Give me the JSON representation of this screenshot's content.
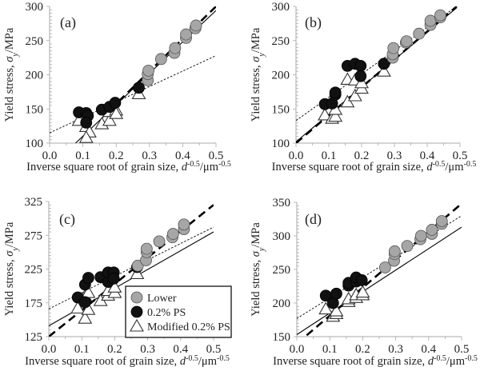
{
  "chart_data": [
    {
      "type": "scatter",
      "panel_label": "(a)",
      "xlabel": "Inverse square root of grain size, d^-0.5/μm^-0.5",
      "ylabel": "Yield stress, σy/MPa",
      "xlim": [
        0.0,
        0.5
      ],
      "ylim": [
        100,
        300
      ],
      "xticks": [
        "0.0",
        "0.1",
        "0.2",
        "0.3",
        "0.4",
        "0.5"
      ],
      "yticks": [
        "100",
        "150",
        "200",
        "250",
        "300"
      ],
      "grid": false,
      "series": [
        {
          "name": "Lower",
          "marker": "circle-gray",
          "points": [
            [
              0.295,
              192
            ],
            [
              0.295,
              201
            ],
            [
              0.297,
              206
            ],
            [
              0.335,
              223
            ],
            [
              0.375,
              232
            ],
            [
              0.377,
              239
            ],
            [
              0.41,
              254
            ],
            [
              0.41,
              259
            ],
            [
              0.438,
              268
            ],
            [
              0.44,
              272
            ]
          ]
        },
        {
          "name": "0.2% PS",
          "marker": "circle-black",
          "points": [
            [
              0.088,
              145
            ],
            [
              0.11,
              144
            ],
            [
              0.115,
              140
            ],
            [
              0.11,
              130
            ],
            [
              0.157,
              149
            ],
            [
              0.18,
              153
            ],
            [
              0.197,
              159
            ],
            [
              0.268,
              181
            ]
          ]
        },
        {
          "name": "Modified 0.2% PS",
          "marker": "triangle-open",
          "points": [
            [
              0.088,
              133
            ],
            [
              0.11,
              124
            ],
            [
              0.12,
              116
            ],
            [
              0.11,
              108
            ],
            [
              0.157,
              128
            ],
            [
              0.18,
              133
            ],
            [
              0.18,
              146
            ],
            [
              0.2,
              148
            ],
            [
              0.2,
              143
            ],
            [
              0.268,
              172
            ]
          ]
        }
      ],
      "fit_lines": [
        {
          "name": "Lower fit",
          "style": "dashed-bold",
          "x": [
            0.18,
            0.5
          ],
          "y": [
            148,
            300
          ]
        },
        {
          "name": "0.2% PS fit",
          "style": "dotted",
          "x": [
            0.0,
            0.5
          ],
          "y": [
            115,
            228
          ]
        },
        {
          "name": "Modified 0.2% PS fit",
          "style": "solid",
          "x": [
            0.078,
            0.5
          ],
          "y": [
            100,
            294
          ]
        }
      ]
    },
    {
      "type": "scatter",
      "panel_label": "(b)",
      "xlabel": "Inverse square root of grain size, d^-0.5/μm^-0.5",
      "ylabel": "Yield stress, σy/MPa",
      "xlim": [
        0.0,
        0.5
      ],
      "ylim": [
        100,
        300
      ],
      "xticks": [
        "0.0",
        "0.1",
        "0.2",
        "0.3",
        "0.4",
        "0.5"
      ],
      "yticks": [
        "100",
        "150",
        "200",
        "250",
        "300"
      ],
      "grid": false,
      "series": [
        {
          "name": "Lower",
          "marker": "circle-gray",
          "points": [
            [
              0.295,
              225
            ],
            [
              0.295,
              230
            ],
            [
              0.297,
              239
            ],
            [
              0.335,
              247
            ],
            [
              0.337,
              249
            ],
            [
              0.375,
              260
            ],
            [
              0.41,
              273
            ],
            [
              0.41,
              279
            ],
            [
              0.44,
              284
            ],
            [
              0.44,
              287
            ]
          ]
        },
        {
          "name": "0.2% PS",
          "marker": "circle-black",
          "points": [
            [
              0.088,
              157
            ],
            [
              0.11,
              158
            ],
            [
              0.12,
              171
            ],
            [
              0.12,
              174
            ],
            [
              0.157,
              213
            ],
            [
              0.18,
              216
            ],
            [
              0.197,
              213
            ],
            [
              0.197,
              198
            ],
            [
              0.268,
              216
            ]
          ]
        },
        {
          "name": "Modified 0.2% PS",
          "marker": "triangle-open",
          "points": [
            [
              0.088,
              141
            ],
            [
              0.11,
              136
            ],
            [
              0.12,
              139
            ],
            [
              0.12,
              149
            ],
            [
              0.157,
              160
            ],
            [
              0.157,
              193
            ],
            [
              0.18,
              169
            ],
            [
              0.18,
              192
            ],
            [
              0.2,
              180
            ],
            [
              0.2,
              188
            ],
            [
              0.268,
              205
            ]
          ]
        }
      ],
      "fit_lines": [
        {
          "name": "Lower fit",
          "style": "dashed-bold",
          "x": [
            0.0,
            0.49
          ],
          "y": [
            100,
            300
          ]
        },
        {
          "name": "0.2% PS fit",
          "style": "dotted",
          "x": [
            0.0,
            0.49
          ],
          "y": [
            133,
            300
          ]
        },
        {
          "name": "Modified 0.2% PS fit",
          "style": "solid",
          "x": [
            0.0,
            0.49
          ],
          "y": [
            102,
            298
          ]
        }
      ]
    },
    {
      "type": "scatter",
      "panel_label": "(c)",
      "xlabel": "Inverse square root of grain size, d^-0.5/μm^-0.5",
      "ylabel": "Yield stress, σy/MPa",
      "xlim": [
        0.0,
        0.5
      ],
      "ylim": [
        125,
        325
      ],
      "xticks": [
        "0.0",
        "0.1",
        "0.2",
        "0.3",
        "0.4",
        "0.5"
      ],
      "yticks": [
        "125",
        "175",
        "225",
        "275",
        "325"
      ],
      "grid": false,
      "legend": {
        "position": "lower-right",
        "entries": [
          "Lower",
          "0.2% PS",
          "Modified 0.2% PS"
        ]
      },
      "series": [
        {
          "name": "Lower",
          "marker": "circle-gray",
          "points": [
            [
              0.27,
              230
            ],
            [
              0.295,
              238
            ],
            [
              0.297,
              250
            ],
            [
              0.297,
              255
            ],
            [
              0.335,
              266
            ],
            [
              0.375,
              272
            ],
            [
              0.377,
              277
            ],
            [
              0.41,
              284
            ],
            [
              0.41,
              291
            ]
          ]
        },
        {
          "name": "0.2% PS",
          "marker": "circle-black",
          "points": [
            [
              0.088,
              183
            ],
            [
              0.11,
              176
            ],
            [
              0.11,
              202
            ],
            [
              0.12,
              212
            ],
            [
              0.157,
              213
            ],
            [
              0.18,
              206
            ],
            [
              0.18,
              220
            ],
            [
              0.197,
              220
            ],
            [
              0.197,
              211
            ],
            [
              0.268,
              228
            ]
          ]
        },
        {
          "name": "Modified 0.2% PS",
          "marker": "triangle-open",
          "points": [
            [
              0.088,
              167
            ],
            [
              0.11,
              152
            ],
            [
              0.11,
              185
            ],
            [
              0.12,
              190
            ],
            [
              0.12,
              165
            ],
            [
              0.157,
              178
            ],
            [
              0.18,
              186
            ],
            [
              0.18,
              193
            ],
            [
              0.2,
              190
            ],
            [
              0.2,
              198
            ],
            [
              0.268,
              218
            ]
          ]
        }
      ],
      "fit_lines": [
        {
          "name": "Lower fit",
          "style": "dashed-bold",
          "x": [
            0.0,
            0.5
          ],
          "y": [
            125,
            320
          ]
        },
        {
          "name": "0.2% PS fit",
          "style": "dotted",
          "x": [
            0.0,
            0.5
          ],
          "y": [
            166,
            287
          ]
        },
        {
          "name": "Modified 0.2% PS fit",
          "style": "solid",
          "x": [
            0.0,
            0.5
          ],
          "y": [
            141,
            280
          ]
        }
      ]
    },
    {
      "type": "scatter",
      "panel_label": "(d)",
      "xlabel": "Inverse square root of grain size, d^-0.5/μm^-0.5",
      "ylabel": "Yield stress, σy/MPa",
      "xlim": [
        0.0,
        0.5
      ],
      "ylim": [
        150,
        350
      ],
      "xticks": [
        "0.0",
        "0.1",
        "0.2",
        "0.3",
        "0.4",
        "0.5"
      ],
      "yticks": [
        "150",
        "200",
        "250",
        "300",
        "350"
      ],
      "grid": false,
      "series": [
        {
          "name": "Lower",
          "marker": "circle-gray",
          "points": [
            [
              0.268,
              253
            ],
            [
              0.295,
              263
            ],
            [
              0.297,
              273
            ],
            [
              0.297,
              277
            ],
            [
              0.335,
              285
            ],
            [
              0.375,
              295
            ],
            [
              0.377,
              300
            ],
            [
              0.41,
              303
            ],
            [
              0.41,
              309
            ],
            [
              0.44,
              318
            ],
            [
              0.44,
              322
            ]
          ]
        },
        {
          "name": "0.2% PS",
          "marker": "circle-black",
          "points": [
            [
              0.088,
              211
            ],
            [
              0.11,
              200
            ],
            [
              0.12,
              214
            ],
            [
              0.157,
              226
            ],
            [
              0.157,
              230
            ],
            [
              0.18,
              232
            ],
            [
              0.18,
              238
            ],
            [
              0.197,
              234
            ]
          ]
        },
        {
          "name": "Modified 0.2% PS",
          "marker": "triangle-open",
          "points": [
            [
              0.088,
              191
            ],
            [
              0.11,
              180
            ],
            [
              0.12,
              184
            ],
            [
              0.12,
              188
            ],
            [
              0.157,
              202
            ],
            [
              0.157,
              206
            ],
            [
              0.18,
              208
            ],
            [
              0.18,
              212
            ],
            [
              0.2,
              212
            ],
            [
              0.2,
              216
            ]
          ]
        }
      ],
      "fit_lines": [
        {
          "name": "Lower fit",
          "style": "dashed-bold",
          "x": [
            0.03,
            0.5
          ],
          "y": [
            152,
            348
          ]
        },
        {
          "name": "0.2% PS fit",
          "style": "dotted",
          "x": [
            0.0,
            0.5
          ],
          "y": [
            177,
            330
          ]
        },
        {
          "name": "Modified 0.2% PS fit",
          "style": "solid",
          "x": [
            0.0,
            0.5
          ],
          "y": [
            153,
            313
          ]
        }
      ]
    }
  ]
}
